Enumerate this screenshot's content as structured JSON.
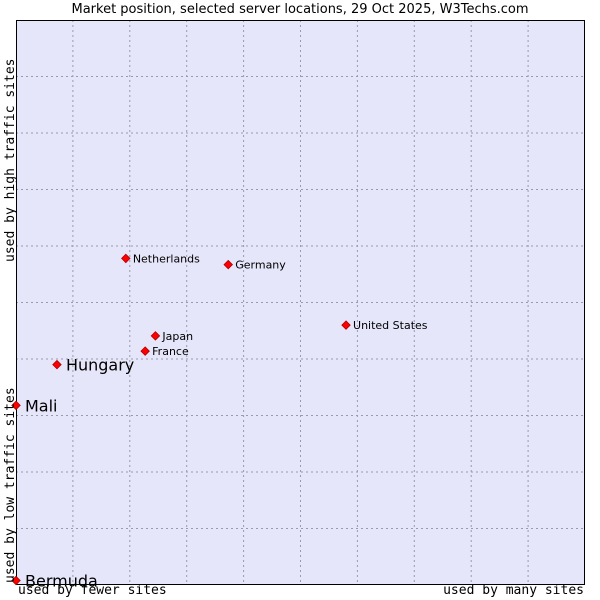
{
  "chart_data": {
    "type": "scatter",
    "title": "Market position, selected server locations, 29 Oct 2025, W3Techs.com",
    "xlabel_left": "used by fewer sites",
    "xlabel_right": "used by many sites",
    "ylabel_bottom": "used by low traffic sites",
    "ylabel_top": "used by high traffic sites",
    "xlim": [
      0,
      10
    ],
    "ylim": [
      0,
      10
    ],
    "grid": true,
    "points": [
      {
        "label": "Netherlands",
        "x": 1.93,
        "y": 5.78,
        "emphasis": false
      },
      {
        "label": "Germany",
        "x": 3.73,
        "y": 5.67,
        "emphasis": false
      },
      {
        "label": "United States",
        "x": 5.8,
        "y": 4.6,
        "emphasis": false
      },
      {
        "label": "Japan",
        "x": 2.45,
        "y": 4.41,
        "emphasis": false
      },
      {
        "label": "France",
        "x": 2.27,
        "y": 4.14,
        "emphasis": false
      },
      {
        "label": "Hungary",
        "x": 0.72,
        "y": 3.9,
        "emphasis": true
      },
      {
        "label": "Mali",
        "x": 0.0,
        "y": 3.18,
        "emphasis": true
      },
      {
        "label": "Bermuda",
        "x": 0.0,
        "y": 0.08,
        "emphasis": true
      }
    ],
    "colors": {
      "plot_background": "#e6e6fa",
      "grid": "#9a9aaa",
      "frame": "#000000",
      "point_fill": "#ff0000",
      "point_stroke": "#aa0000"
    }
  }
}
